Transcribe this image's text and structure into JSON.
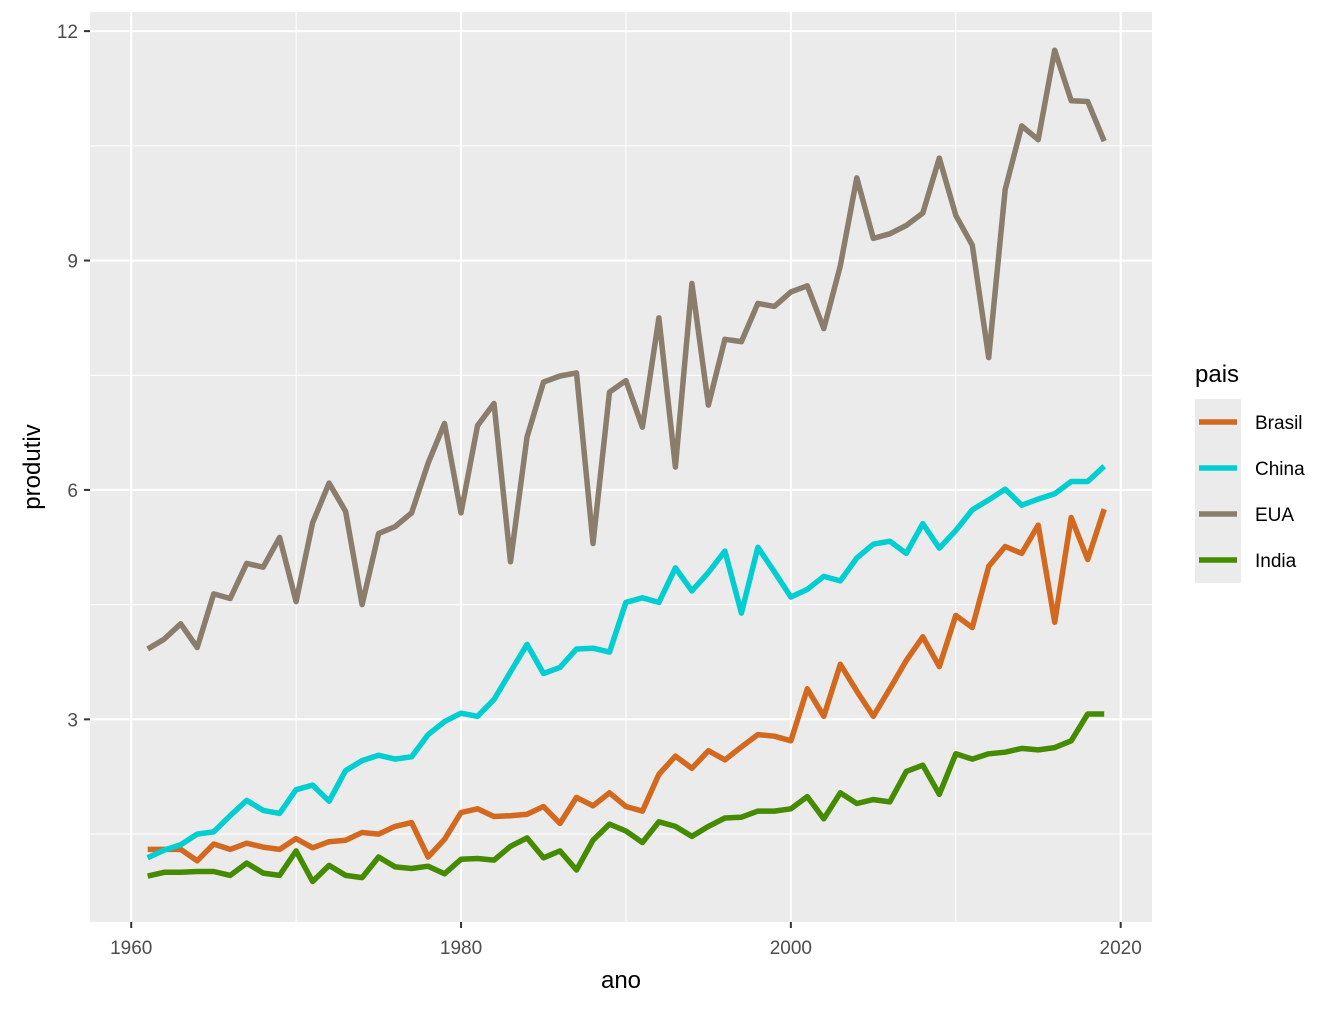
{
  "colors": {
    "panel_background": "#EBEBEB",
    "grid_major": "#FFFFFF",
    "tick_text": "#4D4D4D",
    "title_text": "#000000"
  },
  "chart_data": {
    "type": "line",
    "xlabel": "ano",
    "ylabel": "produtiv",
    "xlim": [
      1957.5,
      2021.9
    ],
    "ylim": [
      0.35,
      12.25
    ],
    "x_ticks": [
      1960,
      1980,
      2000,
      2020
    ],
    "y_ticks": [
      3,
      6,
      9,
      12
    ],
    "grid": true,
    "legend": {
      "title": "pais",
      "placement": "right"
    },
    "x": [
      1961,
      1962,
      1963,
      1964,
      1965,
      1966,
      1967,
      1968,
      1969,
      1970,
      1971,
      1972,
      1973,
      1974,
      1975,
      1976,
      1977,
      1978,
      1979,
      1980,
      1981,
      1982,
      1983,
      1984,
      1985,
      1986,
      1987,
      1988,
      1989,
      1990,
      1991,
      1992,
      1993,
      1994,
      1995,
      1996,
      1997,
      1998,
      1999,
      2000,
      2001,
      2002,
      2003,
      2004,
      2005,
      2006,
      2007,
      2008,
      2009,
      2010,
      2011,
      2012,
      2013,
      2014,
      2015,
      2016,
      2017,
      2018,
      2019
    ],
    "series": [
      {
        "name": "Brasil",
        "color": "#D2691E",
        "values": [
          1.3,
          1.3,
          1.3,
          1.15,
          1.37,
          1.3,
          1.38,
          1.33,
          1.3,
          1.44,
          1.32,
          1.4,
          1.42,
          1.52,
          1.5,
          1.6,
          1.65,
          1.2,
          1.43,
          1.78,
          1.83,
          1.73,
          1.74,
          1.76,
          1.86,
          1.64,
          1.98,
          1.87,
          2.04,
          1.86,
          1.8,
          2.28,
          2.52,
          2.36,
          2.59,
          2.47,
          2.64,
          2.8,
          2.78,
          2.72,
          3.4,
          3.04,
          3.72,
          3.37,
          3.04,
          3.4,
          3.77,
          4.08,
          3.69,
          4.36,
          4.2,
          5.0,
          5.26,
          5.17,
          5.54,
          4.27,
          5.64,
          5.09,
          5.75
        ]
      },
      {
        "name": "China",
        "color": "#00CED1",
        "values": [
          1.19,
          1.29,
          1.36,
          1.5,
          1.53,
          1.74,
          1.94,
          1.81,
          1.77,
          2.08,
          2.14,
          1.93,
          2.33,
          2.46,
          2.53,
          2.48,
          2.51,
          2.8,
          2.97,
          3.08,
          3.04,
          3.26,
          3.62,
          3.98,
          3.6,
          3.68,
          3.92,
          3.93,
          3.88,
          4.53,
          4.59,
          4.53,
          4.98,
          4.68,
          4.92,
          5.2,
          4.39,
          5.25,
          4.93,
          4.6,
          4.7,
          4.87,
          4.81,
          5.11,
          5.29,
          5.33,
          5.17,
          5.56,
          5.24,
          5.47,
          5.74,
          5.87,
          6.01,
          5.8,
          5.88,
          5.95,
          6.11,
          6.11,
          6.31
        ]
      },
      {
        "name": "EUA",
        "color": "#8B7D6B",
        "values": [
          3.92,
          4.05,
          4.25,
          3.94,
          4.64,
          4.58,
          5.04,
          4.99,
          5.38,
          4.54,
          5.57,
          6.09,
          5.72,
          4.5,
          5.43,
          5.52,
          5.7,
          6.35,
          6.87,
          5.7,
          6.84,
          7.13,
          5.06,
          6.69,
          7.41,
          7.49,
          7.53,
          5.3,
          7.28,
          7.43,
          6.82,
          8.25,
          6.3,
          8.7,
          7.11,
          7.97,
          7.94,
          8.44,
          8.4,
          8.59,
          8.67,
          8.11,
          8.93,
          10.08,
          9.29,
          9.35,
          9.46,
          9.62,
          10.34,
          9.59,
          9.2,
          7.73,
          9.93,
          10.76,
          10.58,
          11.75,
          11.09,
          11.08,
          10.56
        ]
      },
      {
        "name": "India",
        "color": "#458B00",
        "values": [
          0.95,
          1.0,
          1.0,
          1.01,
          1.01,
          0.96,
          1.12,
          0.99,
          0.96,
          1.28,
          0.88,
          1.09,
          0.96,
          0.93,
          1.2,
          1.07,
          1.05,
          1.08,
          0.98,
          1.17,
          1.18,
          1.16,
          1.34,
          1.45,
          1.19,
          1.28,
          1.03,
          1.42,
          1.63,
          1.54,
          1.39,
          1.66,
          1.6,
          1.47,
          1.6,
          1.71,
          1.72,
          1.8,
          1.8,
          1.83,
          1.99,
          1.7,
          2.04,
          1.9,
          1.95,
          1.92,
          2.32,
          2.4,
          2.02,
          2.55,
          2.48,
          2.55,
          2.57,
          2.62,
          2.6,
          2.63,
          2.72,
          3.07,
          3.07
        ]
      }
    ]
  }
}
